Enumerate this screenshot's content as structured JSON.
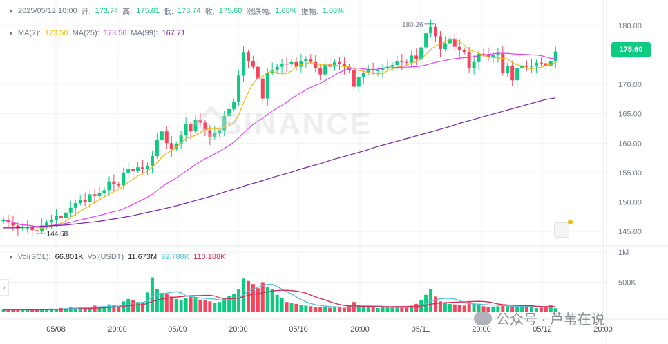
{
  "colors": {
    "up": "#0ecb81",
    "down": "#f6465d",
    "ma7": "#f0b90b",
    "ma25": "#e040fb",
    "ma99": "#7b1fa2",
    "vol_ma1": "#4dc3d8",
    "vol_ma2": "#d32f5a",
    "grid": "#f0f1f2",
    "text": "#707a8a"
  },
  "ohlc": {
    "datetime": "2025/05/12 10:00",
    "open_label": "开:",
    "open": "173.74",
    "high_label": "高:",
    "high": "175.61",
    "low_label": "低:",
    "low": "173.74",
    "close_label": "收:",
    "close": "175.60",
    "change_label": "涨跌幅:",
    "change": "1.08%",
    "amplitude_label": "振幅:",
    "amplitude": "1.08%"
  },
  "ma": {
    "ma7_label": "MA(7):",
    "ma7": "173.50",
    "ma25_label": "MA(25):",
    "ma25": "173.56",
    "ma99_label": "MA(99):",
    "ma99": "167.71"
  },
  "volume": {
    "vol_label": "Vol(SOL):",
    "vol": "66.801K",
    "usdt_label": "Vol(USDT)",
    "usdt": "11.673M",
    "ma1": "92.788K",
    "ma2": "110.188K"
  },
  "current_price": "175.60",
  "high_marker": "180.26",
  "low_marker": "144.68",
  "price_axis": [
    "180.00",
    "175.00",
    "170.00",
    "165.00",
    "160.00",
    "155.00",
    "150.00",
    "145.00"
  ],
  "volume_axis": [
    "1M",
    "500K"
  ],
  "time_axis": [
    "05/08",
    "20:00",
    "05/09",
    "20:00",
    "05/10",
    "20:00",
    "05/11",
    "20:00",
    "05/12",
    "20:00"
  ],
  "watermark": "BINANCE",
  "footer_watermark": "公众号 · 芦苇在说",
  "icons": [
    "eye-toggle-icon",
    "binance-logo-icon",
    "notes-icon",
    "expand-arrow-icon",
    "wechat-icon"
  ],
  "chart_data": {
    "type": "candlestick",
    "title": "",
    "ylim": [
      143,
      182
    ],
    "series_ma": [
      "MA(7)",
      "MA(25)",
      "MA(99)"
    ],
    "closes": [
      147.0,
      146.5,
      146.0,
      145.5,
      145.5,
      145.8,
      145.2,
      145.0,
      146.0,
      146.5,
      147.0,
      147.6,
      147.3,
      148.2,
      149.0,
      149.8,
      150.4,
      150.0,
      151.3,
      151.0,
      151.5,
      152.0,
      153.5,
      153.0,
      152.8,
      155.0,
      155.6,
      155.3,
      155.9,
      155.6,
      156.2,
      157.8,
      160.5,
      162.0,
      160.0,
      159.0,
      159.8,
      161.3,
      163.2,
      162.0,
      164.0,
      163.5,
      162.2,
      161.0,
      161.7,
      162.2,
      164.6,
      165.8,
      167.0,
      171.5,
      175.4,
      174.0,
      173.0,
      171.0,
      167.6,
      172.0,
      172.5,
      173.0,
      173.5,
      173.4,
      173.8,
      173.0,
      174.0,
      174.3,
      173.8,
      172.8,
      171.7,
      173.4,
      173.0,
      173.8,
      173.5,
      173.0,
      172.4,
      169.6,
      171.3,
      172.0,
      172.5,
      172.4,
      172.4,
      172.7,
      173.0,
      173.3,
      174.0,
      173.8,
      173.7,
      174.9,
      174.3,
      176.3,
      178.7,
      179.8,
      178.2,
      176.0,
      177.0,
      177.8,
      176.4,
      175.8,
      175.5,
      172.7,
      173.8,
      175.2,
      175.1,
      174.6,
      175.0,
      175.3,
      171.9,
      173.2,
      170.7,
      172.8,
      173.2,
      173.0,
      173.2,
      173.7,
      173.6,
      173.2,
      174.0,
      175.6
    ],
    "ma99": [
      145.6,
      145.6,
      145.7,
      145.8,
      145.9,
      146.0,
      146.1,
      146.3,
      146.5,
      146.7,
      147.0,
      147.3,
      147.6,
      148.0,
      148.4,
      148.8,
      149.2,
      149.7,
      150.2,
      150.7,
      151.2,
      151.8,
      152.3,
      152.9,
      153.4,
      154.0,
      154.5,
      155.0,
      155.6,
      156.1,
      156.6,
      157.2,
      157.7,
      158.2,
      158.7,
      159.3,
      159.8,
      160.3,
      160.8,
      161.3,
      161.8,
      162.3,
      162.8,
      163.4,
      163.9,
      164.4,
      164.9,
      165.4,
      165.9,
      166.4,
      166.9,
      167.4,
      167.7
    ],
    "vol_axis_max": 1000000,
    "volumes": [
      40000,
      45000,
      50000,
      42000,
      38000,
      35000,
      36000,
      40000,
      55000,
      48000,
      60000,
      52000,
      70000,
      65000,
      80000,
      75000,
      90000,
      85000,
      70000,
      110000,
      95000,
      100000,
      130000,
      120000,
      90000,
      180000,
      220000,
      200000,
      170000,
      150000,
      330000,
      580000,
      380000,
      320000,
      300000,
      260000,
      220000,
      200000,
      240000,
      280000,
      250000,
      210000,
      200000,
      180000,
      160000,
      170000,
      230000,
      270000,
      300000,
      380000,
      560000,
      520000,
      470000,
      400000,
      500000,
      420000,
      380000,
      290000,
      230000,
      170000,
      150000,
      140000,
      120000,
      110000,
      100000,
      90000,
      80000,
      85000,
      75000,
      90000,
      80000,
      70000,
      110000,
      170000,
      120000,
      95000,
      90000,
      80000,
      70000,
      85000,
      80000,
      75000,
      100000,
      90000,
      85000,
      110000,
      140000,
      200000,
      290000,
      380000,
      260000,
      180000,
      160000,
      140000,
      130000,
      120000,
      110000,
      170000,
      140000,
      130000,
      100000,
      90000,
      95000,
      100000,
      120000,
      100000,
      110000,
      90000,
      80000,
      95000,
      85000,
      70000,
      75000,
      100000,
      120000,
      66801
    ]
  }
}
